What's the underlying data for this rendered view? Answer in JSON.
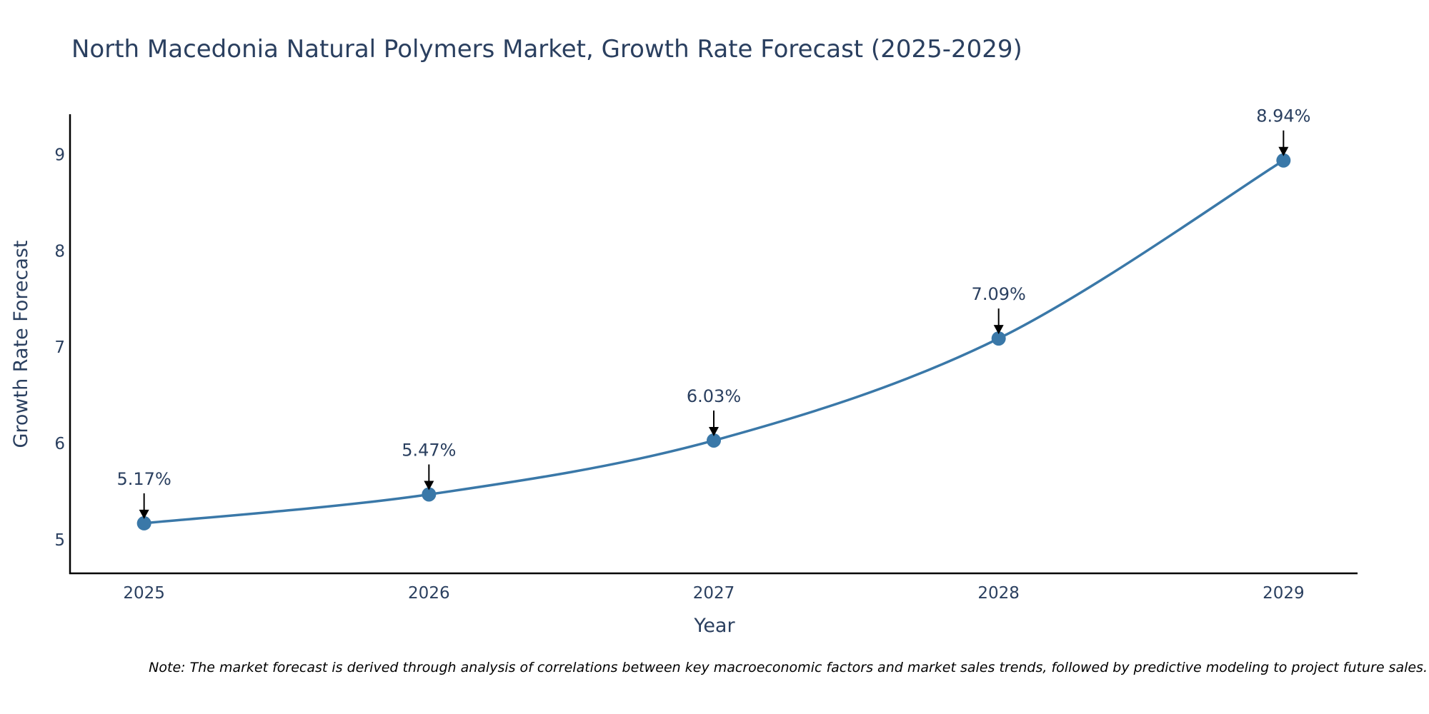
{
  "chart_data": {
    "type": "line",
    "title": "North Macedonia Natural Polymers Market, Growth Rate Forecast (2025-2029)",
    "xlabel": "Year",
    "ylabel": "Growth Rate Forecast",
    "categories": [
      "2025",
      "2026",
      "2027",
      "2028",
      "2029"
    ],
    "x": [
      2025,
      2026,
      2027,
      2028,
      2029
    ],
    "series": [
      {
        "name": "Growth Rate Forecast",
        "values": [
          5.17,
          5.47,
          6.03,
          7.09,
          8.94
        ],
        "color": "#3a78a8"
      }
    ],
    "data_labels": [
      "5.17%",
      "5.47%",
      "6.03%",
      "7.09%",
      "8.94%"
    ],
    "yticks": [
      5,
      6,
      7,
      8,
      9
    ],
    "ytick_labels": [
      "5",
      "6",
      "7",
      "8",
      "9"
    ],
    "ylim": [
      4.65,
      9.42
    ],
    "xlim": [
      2024.74,
      2029.26
    ],
    "grid": false,
    "line_shape": "spline",
    "note": "Note: The market forecast is derived through analysis of correlations between key macroeconomic factors and market sales trends, followed by predictive modeling to project future sales."
  }
}
